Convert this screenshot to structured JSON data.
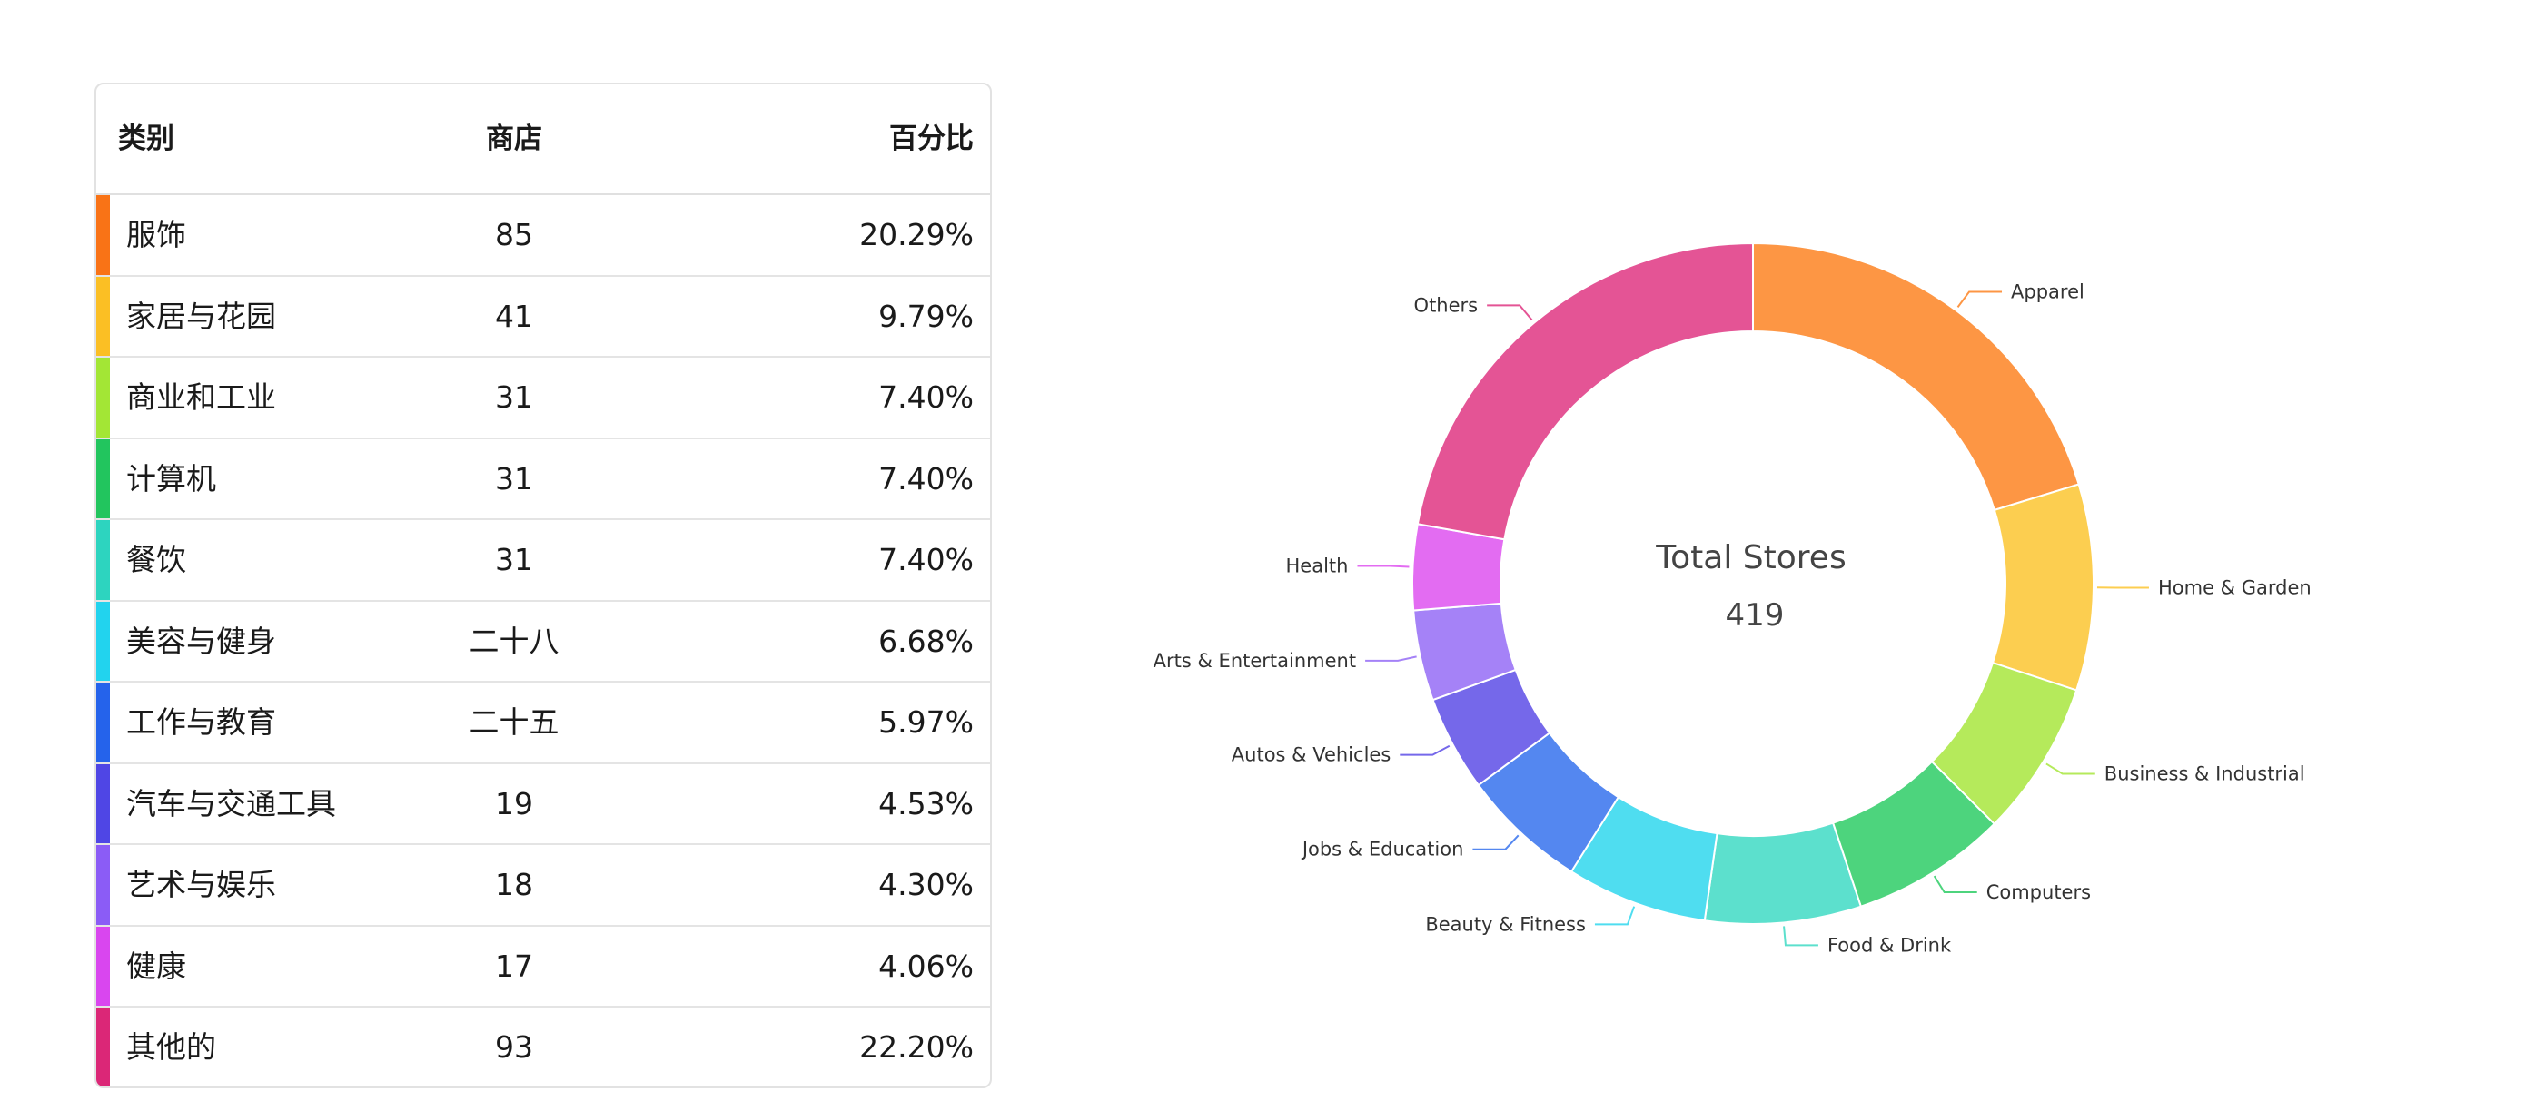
{
  "table": {
    "headers": {
      "category": "类别",
      "stores": "商店",
      "percent": "百分比"
    },
    "rows": [
      {
        "category": "服饰",
        "stores": "85",
        "percent": "20.29%",
        "color": "#F97316"
      },
      {
        "category": "家居与花园",
        "stores": "41",
        "percent": "9.79%",
        "color": "#FBBF24"
      },
      {
        "category": "商业和工业",
        "stores": "31",
        "percent": "7.40%",
        "color": "#A3E635"
      },
      {
        "category": "计算机",
        "stores": "31",
        "percent": "7.40%",
        "color": "#22C55E"
      },
      {
        "category": "餐饮",
        "stores": "31",
        "percent": "7.40%",
        "color": "#2DD4BF"
      },
      {
        "category": "美容与健身",
        "stores": "二十八",
        "percent": "6.68%",
        "color": "#22D3EE"
      },
      {
        "category": "工作与教育",
        "stores": "二十五",
        "percent": "5.97%",
        "color": "#2563EB"
      },
      {
        "category": "汽车与交通工具",
        "stores": "19",
        "percent": "4.53%",
        "color": "#4F46E5"
      },
      {
        "category": "艺术与娱乐",
        "stores": "18",
        "percent": "4.30%",
        "color": "#8B5CF6"
      },
      {
        "category": "健康",
        "stores": "17",
        "percent": "4.06%",
        "color": "#D946EF"
      },
      {
        "category": "其他的",
        "stores": "93",
        "percent": "22.20%",
        "color": "#DB2777"
      }
    ]
  },
  "chart_data": {
    "type": "pie",
    "variant": "donut",
    "center_title": "Total Stores",
    "center_value": "419",
    "series": [
      {
        "name": "Apparel",
        "value": 85,
        "color": "#FD9644"
      },
      {
        "name": "Home & Garden",
        "value": 41,
        "color": "#FCCE50"
      },
      {
        "name": "Business & Industrial",
        "value": 31,
        "color": "#B5EA5B"
      },
      {
        "name": "Computers",
        "value": 31,
        "color": "#4DD47D"
      },
      {
        "name": "Food & Drink",
        "value": 31,
        "color": "#5CE0CD"
      },
      {
        "name": "Beauty & Fitness",
        "value": 28,
        "color": "#4FDDF0"
      },
      {
        "name": "Jobs & Education",
        "value": 25,
        "color": "#5487F0"
      },
      {
        "name": "Autos & Vehicles",
        "value": 19,
        "color": "#7568EA"
      },
      {
        "name": "Arts & Entertainment",
        "value": 18,
        "color": "#A582F7"
      },
      {
        "name": "Health",
        "value": 17,
        "color": "#E36CF2"
      },
      {
        "name": "Others",
        "value": 93,
        "color": "#E45495"
      }
    ]
  }
}
